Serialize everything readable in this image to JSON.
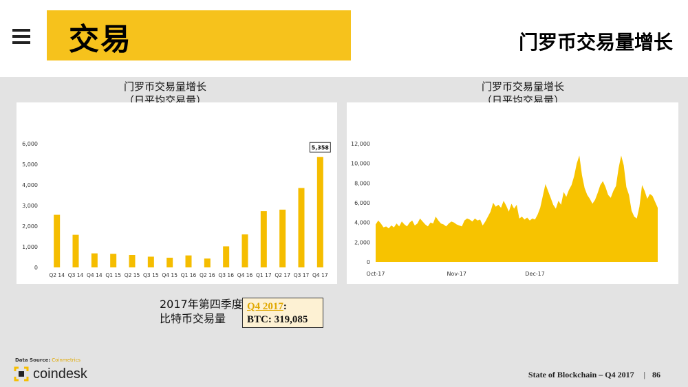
{
  "header": {
    "title": "交易",
    "heading": "门罗币交易量增长"
  },
  "left_chart": {
    "title_line1": "门罗币交易量增长",
    "title_line2": "（日平均交易量）"
  },
  "right_chart": {
    "title_line1": "门罗币交易量增长",
    "title_line2": "（日平均交易量）"
  },
  "callout": {
    "label_line1": "2017年第四季度",
    "label_line2": "比特币交易量",
    "period": "Q4 2017",
    "colon": ":",
    "value_text": "BTC: 319,085"
  },
  "source": {
    "label": "Data Source:",
    "link": "Coinmetrics"
  },
  "logo": {
    "text": "coindesk"
  },
  "footer": {
    "text": "State of Blockchain – Q4 2017",
    "separator": "|",
    "page_number": "86"
  },
  "colors": {
    "accent": "#f6c21c",
    "bar": "#f5bd00",
    "area": "#f7c300"
  },
  "chart_data": [
    {
      "type": "bar",
      "categories": [
        "Q2 14",
        "Q3 14",
        "Q4 14",
        "Q1 15",
        "Q2 15",
        "Q3 15",
        "Q4 15",
        "Q1 16",
        "Q2 16",
        "Q3 16",
        "Q4 16",
        "Q1 17",
        "Q2 17",
        "Q3 17",
        "Q4 17"
      ],
      "values": [
        2550,
        1580,
        680,
        660,
        600,
        520,
        470,
        580,
        430,
        1020,
        1600,
        2730,
        2800,
        3850,
        5358
      ],
      "ylim": [
        0,
        6000
      ],
      "yticks": [
        "0",
        "1,000",
        "2,000",
        "3,000",
        "4,000",
        "5,000",
        "6,000"
      ],
      "ytick_values": [
        0,
        1000,
        2000,
        3000,
        4000,
        5000,
        6000
      ],
      "data_label": "5,358",
      "grid": false
    },
    {
      "type": "area",
      "x_tick_labels": [
        "Oct-17",
        "Nov-17",
        "Dec-17"
      ],
      "ylim": [
        0,
        12000
      ],
      "yticks": [
        "0",
        "2,000",
        "4,000",
        "6,000",
        "8,000",
        "10,000",
        "12,000"
      ],
      "ytick_values": [
        0,
        2000,
        4000,
        6000,
        8000,
        10000,
        12000
      ],
      "values": [
        3800,
        4200,
        3900,
        3500,
        3600,
        3400,
        3700,
        3500,
        3900,
        3600,
        4100,
        3800,
        3600,
        4000,
        4200,
        3700,
        3900,
        4400,
        4100,
        3800,
        3600,
        4000,
        3900,
        4600,
        4200,
        3900,
        3800,
        3600,
        3900,
        4100,
        4000,
        3800,
        3700,
        3600,
        4200,
        4400,
        4300,
        4100,
        4400,
        4200,
        4300,
        3700,
        4100,
        4600,
        5100,
        6000,
        5600,
        5800,
        5500,
        6200,
        5700,
        5100,
        5900,
        5400,
        5800,
        4400,
        4600,
        4300,
        4500,
        4200,
        4400,
        4300,
        4800,
        5500,
        6700,
        7900,
        7200,
        6500,
        5800,
        5400,
        6200,
        5800,
        7100,
        6600,
        7300,
        7800,
        8700,
        10000,
        10800,
        8800,
        7500,
        6800,
        6400,
        5900,
        6300,
        7000,
        7800,
        8200,
        7600,
        6800,
        6500,
        7200,
        7700,
        9500,
        10800,
        9800,
        7600,
        6800,
        5200,
        4600,
        4400,
        5600,
        7800,
        7200,
        6400,
        6900,
        6700,
        6100,
        5500
      ],
      "grid": false
    }
  ]
}
